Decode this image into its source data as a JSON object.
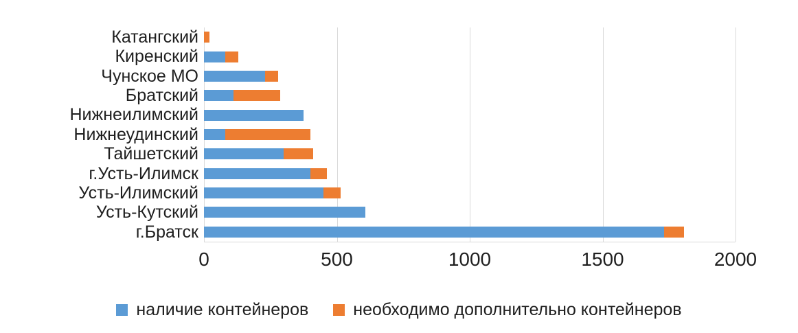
{
  "chart_data": {
    "type": "bar",
    "orientation": "horizontal",
    "stacked": true,
    "title": "",
    "xlabel": "",
    "ylabel": "",
    "grid": true,
    "legend_position": "bottom",
    "xlim": [
      0,
      2000
    ],
    "x_ticks": [
      0,
      500,
      1000,
      1500,
      2000
    ],
    "categories": [
      "Катангский",
      "Киренский",
      "Чунское МО",
      "Братский",
      "Нижнеилимский",
      "Нижнеудинский",
      "Тайшетский",
      "г.Усть-Илимск",
      "Усть-Илимский",
      "Усть-Кутский",
      "г.Братск"
    ],
    "series": [
      {
        "name": "наличие контейнеров",
        "color": "#5B9BD5",
        "values": [
          0,
          80,
          230,
          110,
          375,
          80,
          300,
          400,
          450,
          608,
          1730
        ]
      },
      {
        "name": "необходимо дополнительно контейнеров",
        "color": "#ED7D31",
        "values": [
          20,
          50,
          48,
          178,
          0,
          320,
          112,
          62,
          65,
          0,
          75
        ]
      }
    ],
    "colors": {
      "gridline": "#d9d9d9",
      "text": "#1f1f1f",
      "background": "#ffffff"
    }
  }
}
